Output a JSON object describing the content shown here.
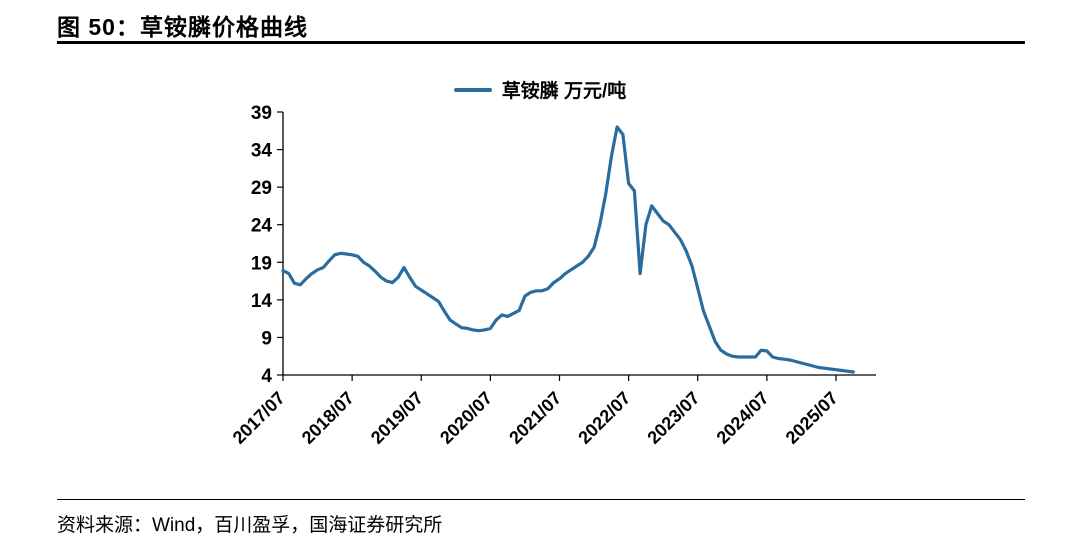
{
  "figure": {
    "title": "图 50：草铵膦价格曲线"
  },
  "footer": {
    "source": "资料来源：Wind，百川盈孚，国海证券研究所"
  },
  "chart_data": {
    "type": "line",
    "title": "草铵膦价格曲线",
    "legend": [
      {
        "name": "草铵膦 万元/吨",
        "color": "#2A6C9E"
      }
    ],
    "legend_position": "top-center",
    "grid": false,
    "ylim": [
      4,
      39
    ],
    "yticks": [
      4,
      9,
      14,
      19,
      24,
      29,
      34,
      39
    ],
    "xticks": [
      "2017/07",
      "2018/07",
      "2019/07",
      "2020/07",
      "2021/07",
      "2022/07",
      "2023/07",
      "2024/07",
      "2025/07"
    ],
    "x": [
      "2017/07",
      "2017/08",
      "2017/09",
      "2017/10",
      "2017/11",
      "2017/12",
      "2018/01",
      "2018/02",
      "2018/03",
      "2018/04",
      "2018/05",
      "2018/06",
      "2018/07",
      "2018/08",
      "2018/09",
      "2018/10",
      "2018/11",
      "2018/12",
      "2019/01",
      "2019/02",
      "2019/03",
      "2019/04",
      "2019/05",
      "2019/06",
      "2019/07",
      "2019/08",
      "2019/09",
      "2019/10",
      "2019/11",
      "2019/12",
      "2020/01",
      "2020/02",
      "2020/03",
      "2020/04",
      "2020/05",
      "2020/06",
      "2020/07",
      "2020/08",
      "2020/09",
      "2020/10",
      "2020/11",
      "2020/12",
      "2021/01",
      "2021/02",
      "2021/03",
      "2021/04",
      "2021/05",
      "2021/06",
      "2021/07",
      "2021/08",
      "2021/09",
      "2021/10",
      "2021/11",
      "2021/12",
      "2022/01",
      "2022/02",
      "2022/03",
      "2022/04",
      "2022/05",
      "2022/06",
      "2022/07",
      "2022/08",
      "2022/09",
      "2022/10",
      "2022/11",
      "2022/12",
      "2023/01",
      "2023/02",
      "2023/03",
      "2023/04",
      "2023/05",
      "2023/06",
      "2023/07",
      "2023/08",
      "2023/09",
      "2023/10",
      "2023/11",
      "2023/12",
      "2024/01",
      "2024/02",
      "2024/03",
      "2024/04",
      "2024/05",
      "2024/06",
      "2024/07",
      "2024/08",
      "2024/09",
      "2024/10",
      "2024/11",
      "2024/12",
      "2025/01",
      "2025/02",
      "2025/03",
      "2025/04",
      "2025/05",
      "2025/06",
      "2025/07",
      "2025/08",
      "2025/09",
      "2025/10"
    ],
    "series": [
      {
        "name": "草铵膦 万元/吨",
        "values": [
          17.9,
          17.5,
          16.2,
          16.0,
          16.8,
          17.5,
          18.0,
          18.3,
          19.2,
          20.0,
          20.2,
          20.1,
          20.0,
          19.8,
          19.0,
          18.5,
          17.8,
          17.0,
          16.5,
          16.3,
          17.0,
          18.3,
          17.0,
          15.8,
          15.3,
          14.8,
          14.3,
          13.8,
          12.5,
          11.3,
          10.8,
          10.3,
          10.2,
          10.0,
          9.9,
          10.0,
          10.2,
          11.3,
          12.0,
          11.8,
          12.2,
          12.6,
          14.5,
          15.0,
          15.2,
          15.2,
          15.5,
          16.3,
          16.8,
          17.5,
          18.0,
          18.5,
          19.0,
          19.8,
          21.0,
          24.0,
          28.0,
          33.0,
          37.0,
          36.0,
          29.5,
          28.5,
          17.5,
          24.0,
          26.5,
          25.5,
          24.5,
          24.0,
          23.0,
          22.0,
          20.5,
          18.5,
          15.5,
          12.5,
          10.5,
          8.5,
          7.3,
          6.8,
          6.5,
          6.4,
          6.4,
          6.4,
          6.4,
          7.3,
          7.2,
          6.4,
          6.2,
          6.1,
          6.0,
          5.8,
          5.6,
          5.4,
          5.2,
          5.0,
          4.9,
          4.8,
          4.7,
          4.6,
          4.5,
          4.4
        ]
      }
    ]
  }
}
